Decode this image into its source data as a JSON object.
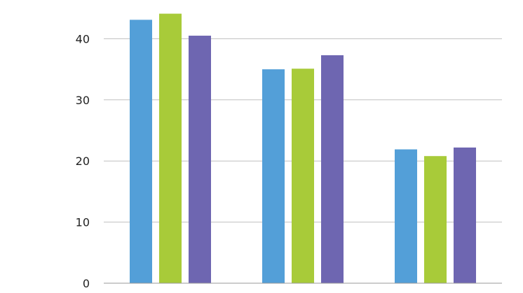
{
  "chart_data": {
    "type": "bar",
    "title": "",
    "xlabel": "",
    "ylabel": "",
    "ylim": [
      0,
      44
    ],
    "yticks": [
      0,
      10,
      20,
      30,
      40
    ],
    "grid": true,
    "categories": [
      "",
      "",
      ""
    ],
    "series": [
      {
        "color": "#539FD8",
        "values": [
          43.1,
          35.0,
          21.9
        ]
      },
      {
        "color": "#A8CB39",
        "values": [
          44.1,
          35.1,
          20.8
        ]
      },
      {
        "color": "#6E66B1",
        "values": [
          40.5,
          37.3,
          22.2
        ]
      }
    ]
  }
}
